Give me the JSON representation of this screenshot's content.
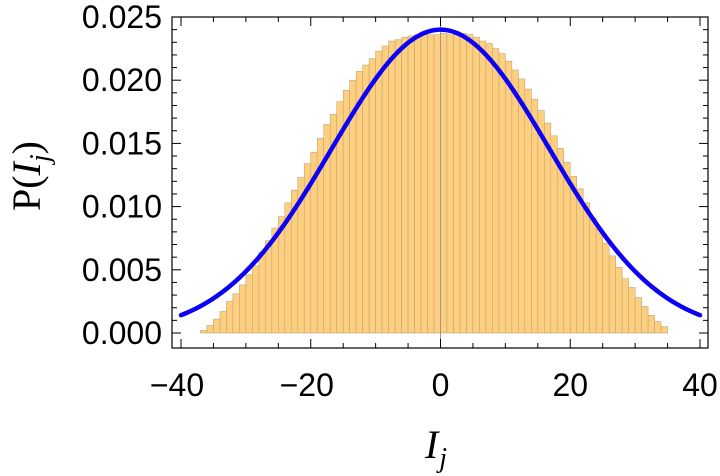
{
  "chart_data": {
    "type": "bar",
    "subtype": "histogram-with-curve",
    "xlabel": "I_j",
    "xlabel_main": "I",
    "xlabel_sub": "j",
    "ylabel": "P(I_j)",
    "ylabel_prefix": "P(",
    "ylabel_var": "I",
    "ylabel_sub": "j",
    "ylabel_suffix": ")",
    "xlim": [
      -40,
      40
    ],
    "ylim": [
      0,
      0.025
    ],
    "x_ticks": [
      -40,
      -20,
      0,
      20,
      40
    ],
    "x_tick_labels": [
      "−40",
      "−20",
      "0",
      "20",
      "40"
    ],
    "y_ticks": [
      0,
      0.005,
      0.01,
      0.015,
      0.02,
      0.025
    ],
    "y_tick_labels": [
      "0.000",
      "0.005",
      "0.010",
      "0.015",
      "0.020",
      "0.025"
    ],
    "grid": false,
    "bin_width": 1,
    "bin_start": -37,
    "bar_values": [
      0.0002,
      0.0006,
      0.0011,
      0.0017,
      0.0025,
      0.0031,
      0.0038,
      0.0046,
      0.0053,
      0.0064,
      0.0073,
      0.0083,
      0.0092,
      0.0103,
      0.0113,
      0.0123,
      0.0134,
      0.0143,
      0.0154,
      0.0165,
      0.0173,
      0.0183,
      0.0192,
      0.02,
      0.0207,
      0.0212,
      0.0217,
      0.0223,
      0.0227,
      0.0231,
      0.0232,
      0.0234,
      0.0235,
      0.0236,
      0.0236,
      0.0236,
      0.0236,
      0.0237,
      0.0236,
      0.0236,
      0.0237,
      0.0236,
      0.0234,
      0.0231,
      0.0229,
      0.0225,
      0.0221,
      0.0215,
      0.0208,
      0.0201,
      0.0193,
      0.0185,
      0.0176,
      0.0166,
      0.0156,
      0.0146,
      0.0135,
      0.0124,
      0.0114,
      0.0103,
      0.0091,
      0.0082,
      0.0071,
      0.0061,
      0.0052,
      0.0043,
      0.0036,
      0.0028,
      0.0021,
      0.0014,
      0.0009,
      0.0005
    ],
    "curve": {
      "function": "gaussian",
      "peak": 0.024,
      "mean": 0,
      "sigma": 16.8,
      "x_range": [
        -40,
        40
      ]
    },
    "colors": {
      "bar_fill": "#fdcf7e",
      "bar_edge": "#c2a67a",
      "curve": "#0c00f5",
      "frame": "#000000",
      "zero_line": "#9a9a9a"
    }
  }
}
